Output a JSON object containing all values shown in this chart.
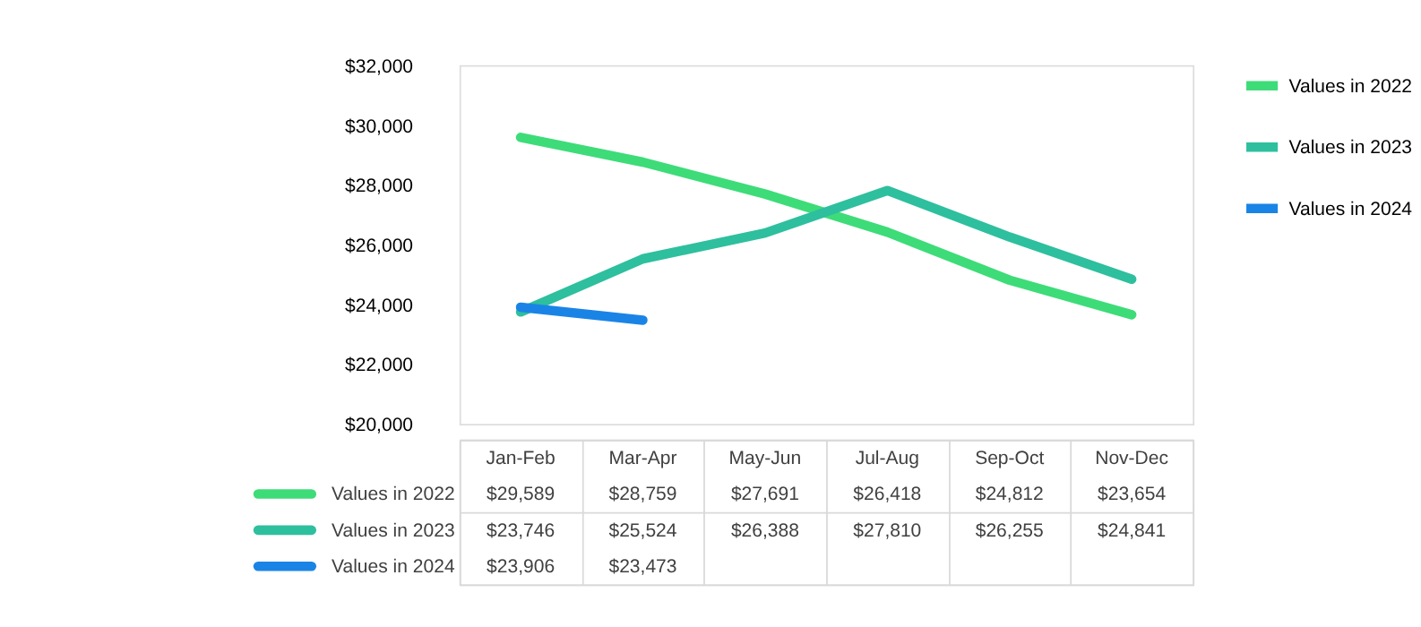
{
  "chart_data": {
    "type": "line",
    "categories": [
      "Jan-Feb",
      "Mar-Apr",
      "May-Jun",
      "Jul-Aug",
      "Sep-Oct",
      "Nov-Dec"
    ],
    "series": [
      {
        "name": "Values in 2022",
        "color": "#3ddc78",
        "values": [
          29589,
          28759,
          27691,
          26418,
          24812,
          23654
        ],
        "value_labels": [
          "$29,589",
          "$28,759",
          "$27,691",
          "$26,418",
          "$24,812",
          "$23,654"
        ]
      },
      {
        "name": "Values in 2023",
        "color": "#2ebf9e",
        "values": [
          23746,
          25524,
          26388,
          27810,
          26255,
          24841
        ],
        "value_labels": [
          "$23,746",
          "$25,524",
          "$26,388",
          "$27,810",
          "$26,255",
          "$24,841"
        ]
      },
      {
        "name": "Values in 2024",
        "color": "#1a84e6",
        "values": [
          23906,
          23473,
          null,
          null,
          null,
          null
        ],
        "value_labels": [
          "$23,906",
          "$23,473",
          null,
          null,
          null,
          null
        ]
      }
    ],
    "ylim": [
      20000,
      32000
    ],
    "yticks": [
      {
        "value": 20000,
        "label": "$20,000"
      },
      {
        "value": 22000,
        "label": "$22,000"
      },
      {
        "value": 24000,
        "label": "$24,000"
      },
      {
        "value": 26000,
        "label": "$26,000"
      },
      {
        "value": 28000,
        "label": "$28,000"
      },
      {
        "value": 30000,
        "label": "$30,000"
      },
      {
        "value": 32000,
        "label": "$32,000"
      }
    ],
    "grid": false,
    "legend": "right",
    "marker": "none",
    "line_style": "solid"
  }
}
